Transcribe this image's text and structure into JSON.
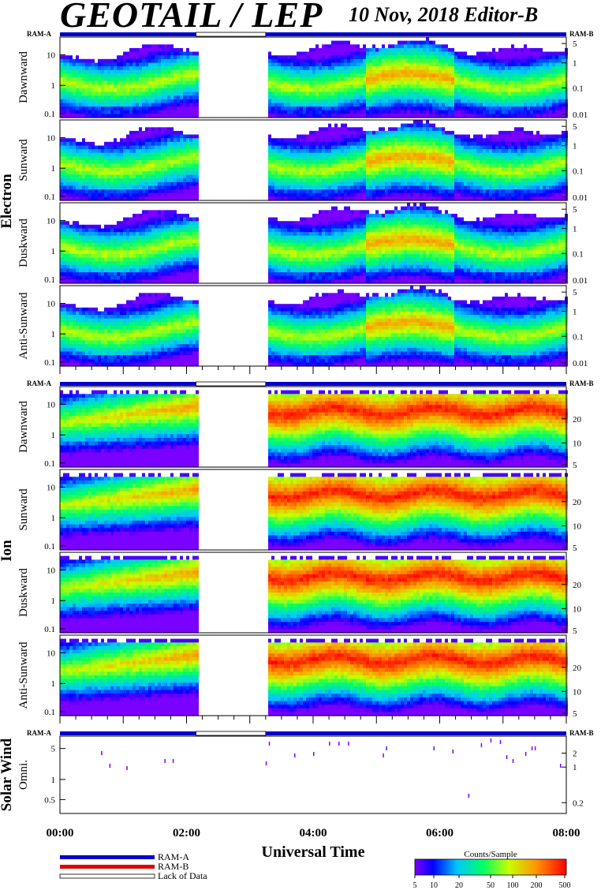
{
  "header": {
    "title": "GEOTAIL / LEP",
    "date_editor": "10 Nov, 2018   Editor-B"
  },
  "ram_labels": {
    "a": "RAM-A",
    "b": "RAM-B"
  },
  "groups": [
    {
      "label": "Electron",
      "panels": [
        "Dawnward",
        "Sunward",
        "Duskward",
        "Anti-Sunward"
      ]
    },
    {
      "label": "Ion",
      "panels": [
        "Dawnward",
        "Sunward",
        "Duskward",
        "Anti-Sunward"
      ]
    },
    {
      "label": "Solar Wind",
      "panels": [
        "Omni."
      ]
    }
  ],
  "xaxis": {
    "title": "Universal Time",
    "ticks": [
      "00:00",
      "02:00",
      "04:00",
      "06:00",
      "08:00"
    ]
  },
  "legend": {
    "ram_a": "RAM-A",
    "ram_b": "RAM-B",
    "lack": "Lack of Data"
  },
  "colorbar": {
    "title": "Counts/Sample",
    "ticks": [
      "5",
      "10",
      "20",
      "50",
      "100",
      "200",
      "500"
    ]
  },
  "colors": {
    "ram_a": "#0000cc",
    "ram_b": "#dd0000",
    "lack": "#ffffff"
  },
  "chart_data": {
    "type": "heatmap",
    "title": "GEOTAIL / LEP",
    "xlabel": "Universal Time",
    "x_range_hours": [
      0,
      8
    ],
    "data_gap_hours": [
      2.15,
      3.25
    ],
    "colorbar": {
      "label": "Counts/Sample",
      "range": [
        5,
        500
      ],
      "scale": "log"
    },
    "electron": {
      "left_axis": {
        "scale": "log",
        "range": [
          0.08,
          40
        ],
        "ticks": [
          "0.1",
          "1",
          "10"
        ]
      },
      "right_axis": {
        "scale": "log",
        "range": [
          0.008,
          6
        ],
        "ticks": [
          "0.01",
          "0.1",
          "1",
          "5"
        ]
      }
    },
    "ion": {
      "left_axis": {
        "scale": "log",
        "range": [
          0.08,
          40
        ],
        "ticks": [
          "0.1",
          "1",
          "10"
        ]
      },
      "right_axis": {
        "ticks": [
          "5",
          "10",
          "20"
        ]
      }
    },
    "solar_wind": {
      "left_axis": {
        "scale": "log",
        "range": [
          0.2,
          8
        ],
        "ticks": [
          "0.5",
          "1",
          "5"
        ]
      },
      "right_axis": {
        "ticks": [
          "0.2",
          "1",
          "2"
        ]
      }
    },
    "ram_bar": [
      {
        "mode": "RAM-A",
        "start": 0,
        "end": 2.15
      },
      {
        "mode": "Lack of Data",
        "start": 2.15,
        "end": 3.25
      },
      {
        "mode": "RAM-A",
        "start": 3.25,
        "end": 8
      }
    ]
  }
}
